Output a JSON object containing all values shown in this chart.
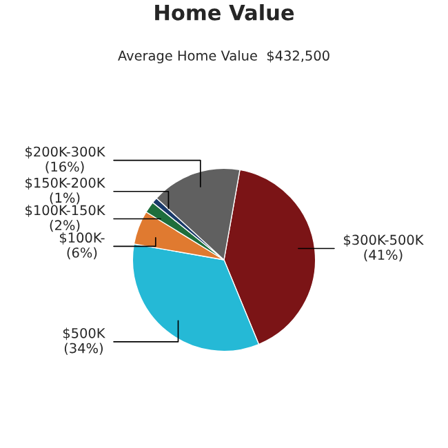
{
  "chart_data": {
    "type": "pie",
    "title": "Home Value",
    "subtitle": "Average Home Value  $432,500",
    "categories": [
      "$300K-500K",
      "$500K",
      "$100K-",
      "$100K-150K",
      "$150K-200K",
      "$200K-300K"
    ],
    "values": [
      41,
      34,
      6,
      2,
      1,
      16
    ],
    "value_labels": [
      "(41%)",
      "(34%)",
      "(6%)",
      "(2%)",
      "(1%)",
      "(16%)"
    ],
    "colors": [
      "#7b1416",
      "#25b9d6",
      "#e07a30",
      "#1e6e3c",
      "#1a3a6a",
      "#606060"
    ]
  }
}
